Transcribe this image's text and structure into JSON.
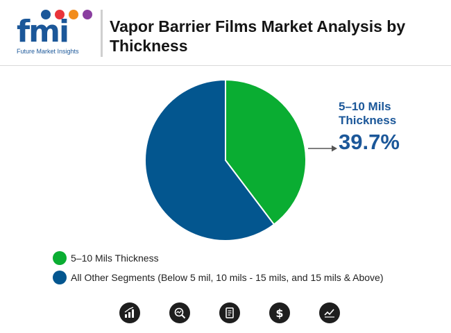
{
  "header": {
    "logo_text": "fmi",
    "logo_tagline": "Future Market Insights",
    "title": "Vapor Barrier Films Market Analysis by Thickness"
  },
  "chart_data": {
    "type": "pie",
    "title": "Vapor Barrier Films Market Analysis by Thickness",
    "slices": [
      {
        "label": "5–10 Mils Thickness",
        "value": 39.7,
        "color": "#0aad32"
      },
      {
        "label": "All Other Segments (Below 5 mil, 10 mils - 15 mils, and 15 mils & Above)",
        "value": 60.3,
        "color": "#03568f"
      }
    ],
    "callout": {
      "label": "5–10 Mils Thickness",
      "value_text": "39.7%"
    },
    "legend_position": "bottom-left"
  },
  "callout": {
    "line1": "5–10 Mils",
    "line2": "Thickness",
    "value": "39.7%"
  },
  "footer_icons": [
    "bar-growth-icon",
    "search-analytics-icon",
    "report-document-icon",
    "dollar-icon",
    "trend-chart-icon"
  ],
  "colors": {
    "accent_green": "#0aad32",
    "accent_blue": "#03568f",
    "brand_blue": "#1b5799"
  }
}
